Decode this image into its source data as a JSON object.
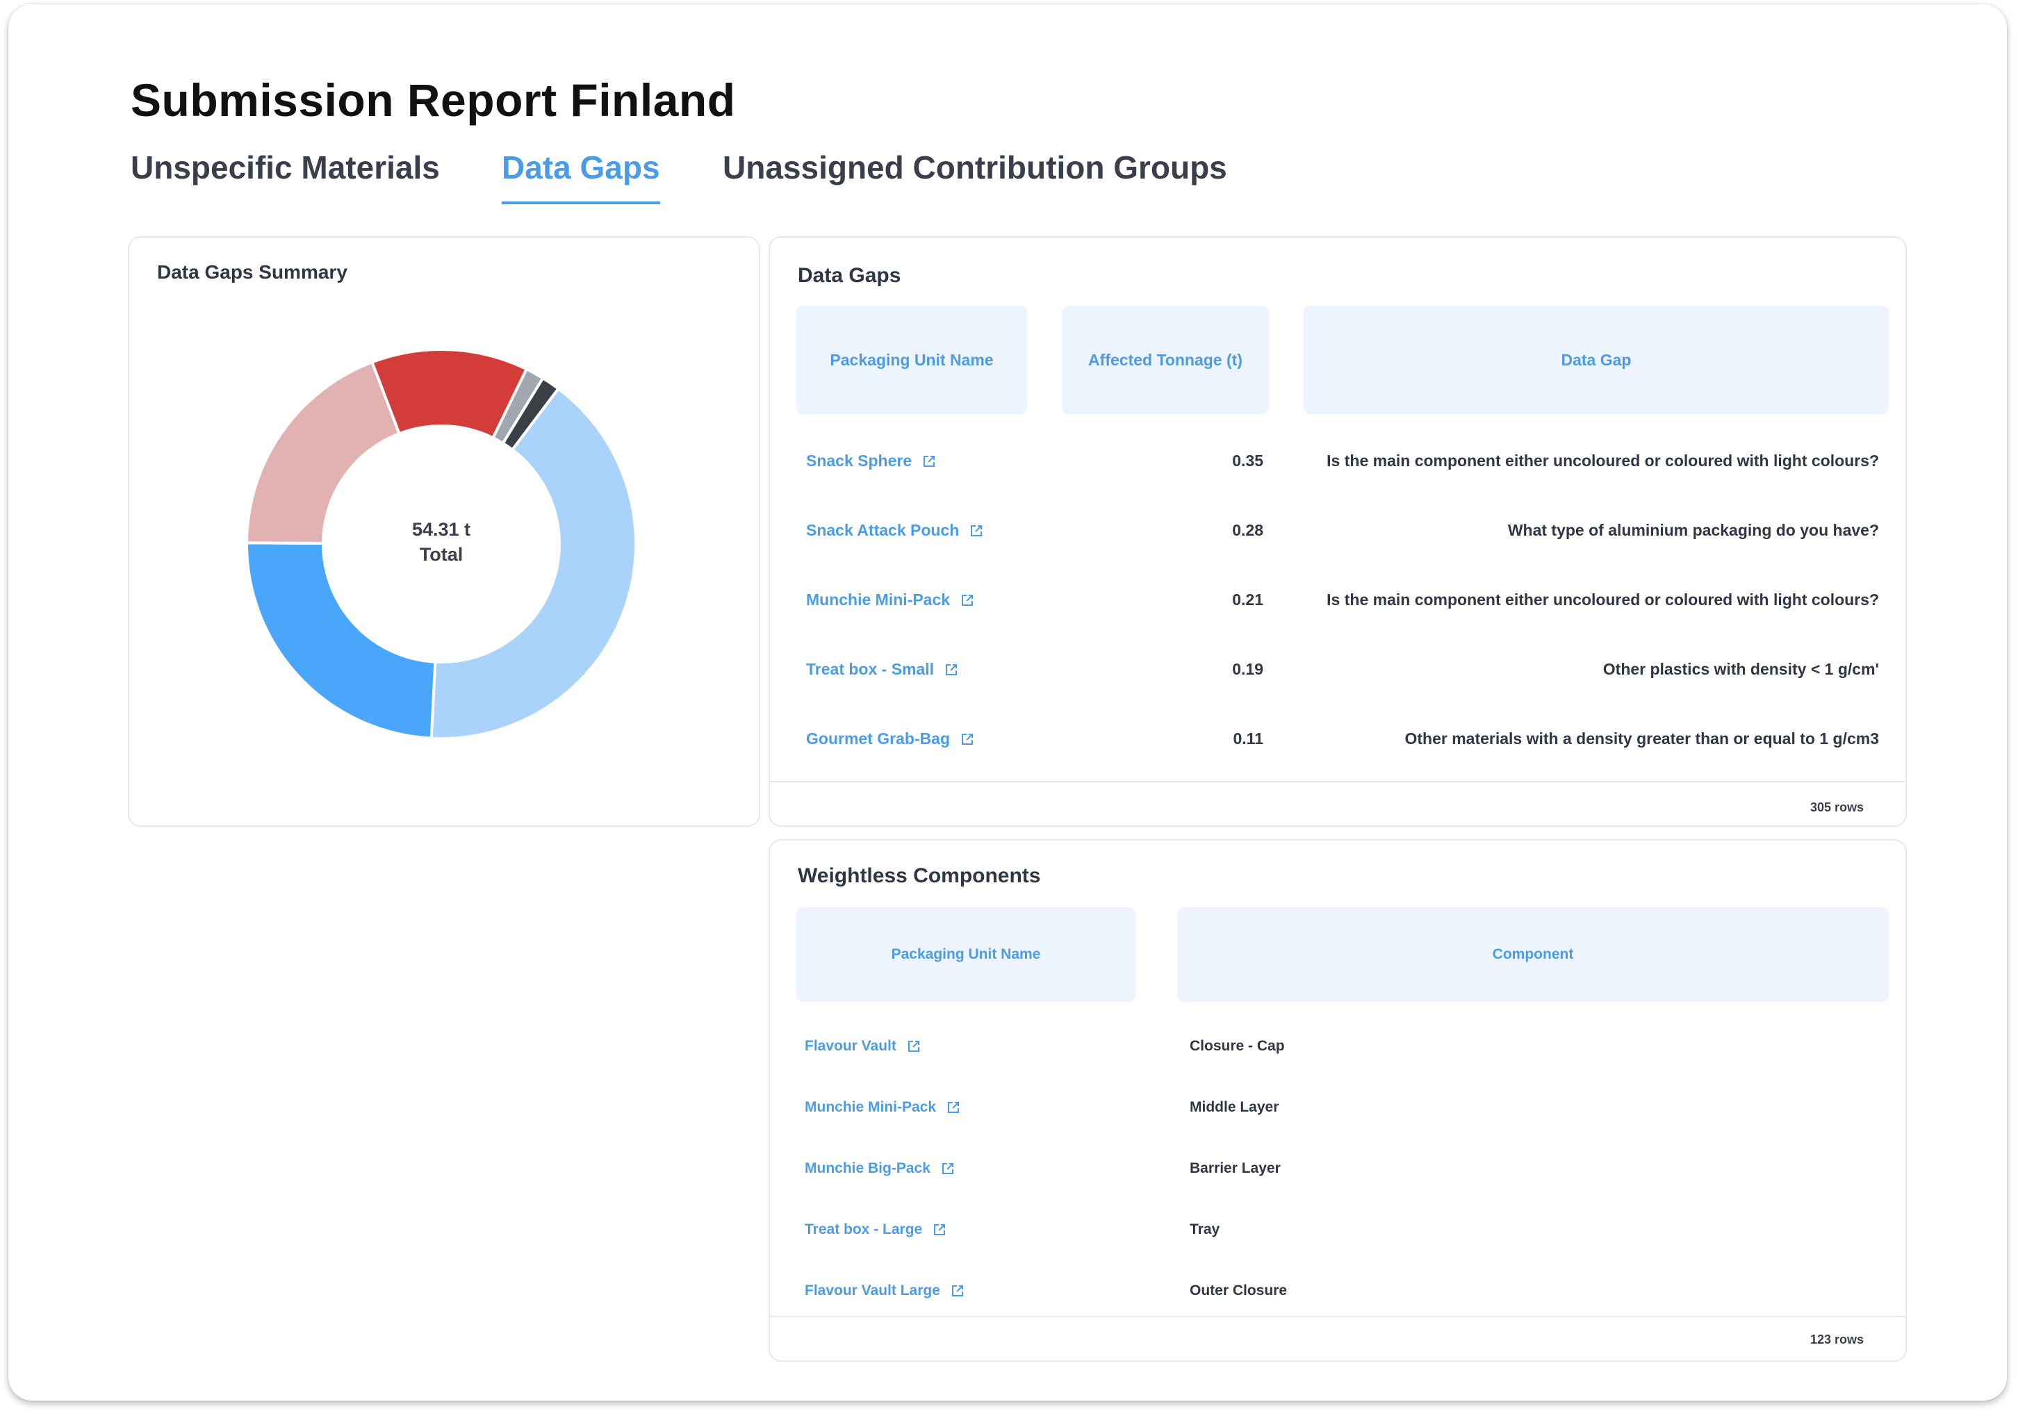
{
  "page": {
    "title": "Submission Report Finland"
  },
  "tabs": [
    {
      "label": "Unspecific Materials",
      "active": false
    },
    {
      "label": "Data Gaps",
      "active": true
    },
    {
      "label": "Unassigned Contribution Groups",
      "active": false
    }
  ],
  "summary": {
    "title": "Data Gaps Summary",
    "total_value": "54.31 t",
    "total_label": "Total"
  },
  "chart_data": {
    "type": "pie",
    "donut": true,
    "segments": [
      {
        "value": 21.2,
        "color": "#a9d3fb"
      },
      {
        "value": 12.7,
        "color": "#4aa6fb"
      },
      {
        "value": 10.0,
        "color": "#e2b1b1"
      },
      {
        "value": 6.8,
        "color": "#d43c3a"
      },
      {
        "value": 0.8,
        "color": "#a1a6b0"
      },
      {
        "value": 0.8,
        "color": "#3c3f46"
      }
    ]
  },
  "data_gaps": {
    "title": "Data Gaps",
    "columns": [
      "Packaging Unit Name",
      "Affected Tonnage (t)",
      "Data Gap"
    ],
    "rows": [
      {
        "name": "Snack Sphere",
        "tonnage": "0.35",
        "gap": "Is the main component either uncoloured or coloured with light colours?"
      },
      {
        "name": "Snack Attack Pouch",
        "tonnage": "0.28",
        "gap": "What type of aluminium packaging do you have?"
      },
      {
        "name": "Munchie Mini-Pack",
        "tonnage": "0.21",
        "gap": "Is the main component either uncoloured or coloured with light colours?"
      },
      {
        "name": "Treat box - Small",
        "tonnage": "0.19",
        "gap": "Other plastics with density < 1 g/cm'"
      },
      {
        "name": "Gourmet Grab-Bag",
        "tonnage": "0.11",
        "gap": "Other materials with a density greater than or equal to 1 g/cm3"
      }
    ],
    "row_count": "305 rows"
  },
  "weightless": {
    "title": "Weightless Components",
    "columns": [
      "Packaging Unit Name",
      "Component"
    ],
    "rows": [
      {
        "name": "Flavour Vault",
        "component": "Closure - Cap"
      },
      {
        "name": "Munchie Mini-Pack",
        "component": "Middle Layer"
      },
      {
        "name": "Munchie Big-Pack",
        "component": "Barrier Layer"
      },
      {
        "name": "Treat box - Large",
        "component": "Tray"
      },
      {
        "name": "Flavour Vault Large",
        "component": "Outer Closure"
      }
    ],
    "row_count": "123 rows"
  },
  "icons": {
    "external_link": "external-link-icon"
  },
  "colors": {
    "accent": "#4a9ce8",
    "header_bg": "#eef4fd"
  }
}
